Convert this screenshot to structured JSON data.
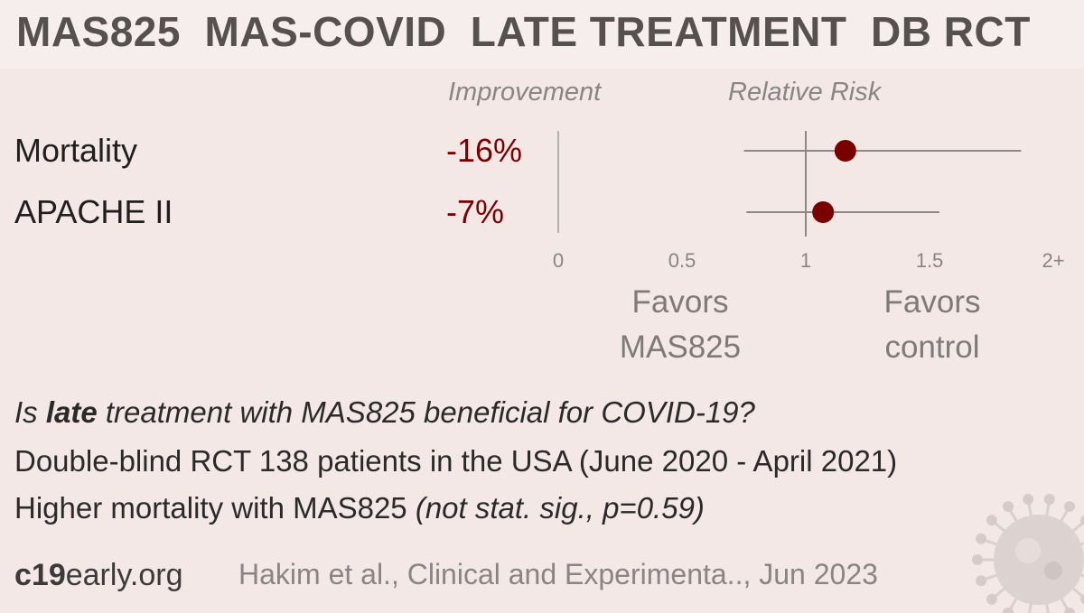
{
  "header": {
    "title": "MAS825  MAS-COVID  LATE TREATMENT  DB RCT"
  },
  "columns": {
    "improvement": "Improvement",
    "relative_risk": "Relative Risk"
  },
  "chart_data": {
    "type": "forest",
    "xlim": [
      0,
      2
    ],
    "ticks": [
      {
        "value": 0,
        "label": "0"
      },
      {
        "value": 0.5,
        "label": "0.5"
      },
      {
        "value": 1,
        "label": "1"
      },
      {
        "value": 1.5,
        "label": "1.5"
      },
      {
        "value": 2,
        "label": "2+"
      }
    ],
    "reference_line": 1,
    "rows": [
      {
        "outcome": "Mortality",
        "improvement": "-16%",
        "rr": 1.16,
        "ci_low": 0.75,
        "ci_high": 1.87
      },
      {
        "outcome": "APACHE II",
        "improvement": "-7%",
        "rr": 1.07,
        "ci_low": 0.76,
        "ci_high": 1.54
      }
    ],
    "favors_left": [
      "Favors",
      "MAS825"
    ],
    "favors_right": [
      "Favors",
      "control"
    ],
    "colors": {
      "point": "#7a0000",
      "line": "#8d8787",
      "axis": "#b5aeae"
    }
  },
  "info": {
    "q_prefix": "Is ",
    "q_bold": "late",
    "q_suffix": " treatment with MAS825 beneficial for COVID-19?",
    "line2": "Double-blind RCT 138 patients in the USA (June 2020 - April 2021)",
    "line3_main": "Higher mortality with MAS825 ",
    "line3_italic": "(not stat. sig., p=0.59)"
  },
  "footer": {
    "brand_bold": "c19",
    "brand_rest": "early.org",
    "citation": "Hakim et al., Clinical and Experimenta.., Jun 2023"
  },
  "icons": {
    "virus": "virus-icon"
  }
}
